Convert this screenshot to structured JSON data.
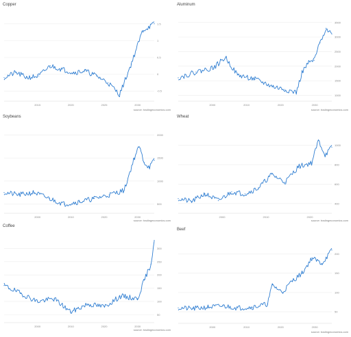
{
  "source_text": "source: tradingeconomics.com",
  "panels": [
    {
      "title": "Copper",
      "source": "source: tradingeconomics.com"
    },
    {
      "title": "Aluminum",
      "source": "source: tradingeconomics.com"
    },
    {
      "title": "Soybeans",
      "source": "source: tradingeconomics.com"
    },
    {
      "title": "Wheat",
      "source": "source: tradingeconomics.com"
    },
    {
      "title": "Coffee",
      "source": "source: tradingeconomics.com"
    },
    {
      "title": "Beef",
      "source": "source: tradingeconomics.com"
    }
  ],
  "line_color": "#2e7dd1",
  "chart_data": [
    {
      "type": "line",
      "title": "Copper",
      "xlabel": "",
      "ylabel": "",
      "y_axis": "right",
      "x": [
        2012,
        2013,
        2014,
        2015,
        2016,
        2017,
        2018,
        2019,
        2020,
        2021,
        2022,
        2023,
        2024,
        2025
      ],
      "xticks": [
        "2015",
        "2020",
        "2025",
        "2030"
      ],
      "yticks": [
        -0.5,
        0,
        0.5,
        1,
        1.5
      ],
      "ylim": [
        -0.8,
        1.8
      ],
      "values": [
        -0.1,
        0.05,
        -0.1,
        -0.05,
        0.25,
        0.15,
        0.05,
        0.1,
        -0.05,
        -0.25,
        -0.6,
        0.3,
        1.3,
        1.5
      ],
      "grid": true
    },
    {
      "type": "line",
      "title": "Aluminum",
      "xlabel": "",
      "ylabel": "",
      "y_axis": "right",
      "x": [
        2000,
        2003,
        2006,
        2008,
        2010,
        2013,
        2016,
        2018,
        2020,
        2021,
        2022,
        2023,
        2024,
        2025,
        2026
      ],
      "xticks": [
        "2000",
        "2010",
        "2020",
        "2030"
      ],
      "yticks": [
        1000,
        1500,
        2000,
        2500,
        3000,
        3500
      ],
      "ylim": [
        800,
        3800
      ],
      "values": [
        1600,
        1800,
        1950,
        2300,
        1700,
        1550,
        1300,
        1200,
        1100,
        1800,
        2100,
        2200,
        2800,
        3300,
        3100
      ],
      "grid": true
    },
    {
      "type": "line",
      "title": "Soybeans",
      "xlabel": "",
      "ylabel": "",
      "y_axis": "right",
      "x": [
        1995,
        1998,
        2001,
        2004,
        2007,
        2010,
        2013,
        2016,
        2019,
        2021,
        2022,
        2023,
        2024,
        2025
      ],
      "xticks": [
        "2000",
        "2010",
        "2020",
        "2030"
      ],
      "yticks": [
        500,
        1000,
        1500,
        2000
      ],
      "ylim": [
        300,
        2200
      ],
      "values": [
        750,
        700,
        750,
        620,
        500,
        550,
        620,
        700,
        800,
        1500,
        1750,
        1400,
        1300,
        1450
      ],
      "grid": true
    },
    {
      "type": "line",
      "title": "Wheat",
      "xlabel": "",
      "ylabel": "",
      "y_axis": "right",
      "x": [
        1980,
        1984,
        1988,
        1992,
        1996,
        2000,
        2004,
        2008,
        2012,
        2016,
        2020,
        2022,
        2024,
        2026
      ],
      "xticks": [
        "2000",
        "2010",
        "2020"
      ],
      "yticks": [
        400,
        600,
        800,
        1000
      ],
      "ylim": [
        300,
        1200
      ],
      "values": [
        450,
        420,
        500,
        430,
        520,
        500,
        560,
        700,
        620,
        780,
        820,
        1050,
        900,
        980
      ],
      "grid": true
    },
    {
      "type": "line",
      "title": "Coffee",
      "xlabel": "",
      "ylabel": "",
      "y_axis": "right",
      "x": [
        1980,
        1985,
        1990,
        1995,
        2000,
        2005,
        2010,
        2015,
        2020,
        2022,
        2024,
        2025
      ],
      "xticks": [
        "2000",
        "2010",
        "2020",
        "2030"
      ],
      "yticks": [
        50,
        100,
        150,
        200,
        250,
        300
      ],
      "ylim": [
        20,
        350
      ],
      "values": [
        160,
        130,
        100,
        110,
        60,
        90,
        80,
        120,
        110,
        180,
        240,
        330
      ],
      "grid": true
    },
    {
      "type": "line",
      "title": "Beef",
      "xlabel": "",
      "ylabel": "",
      "y_axis": "right",
      "x": [
        1995,
        1998,
        2001,
        2004,
        2007,
        2010,
        2013,
        2014,
        2016,
        2018,
        2020,
        2022,
        2024,
        2026
      ],
      "xticks": [
        "2000",
        "2010",
        "2020",
        "2030"
      ],
      "yticks": [
        50,
        100,
        150,
        200
      ],
      "ylim": [
        20,
        240
      ],
      "values": [
        60,
        58,
        62,
        65,
        60,
        62,
        70,
        120,
        100,
        130,
        150,
        190,
        175,
        210
      ],
      "grid": true
    }
  ]
}
